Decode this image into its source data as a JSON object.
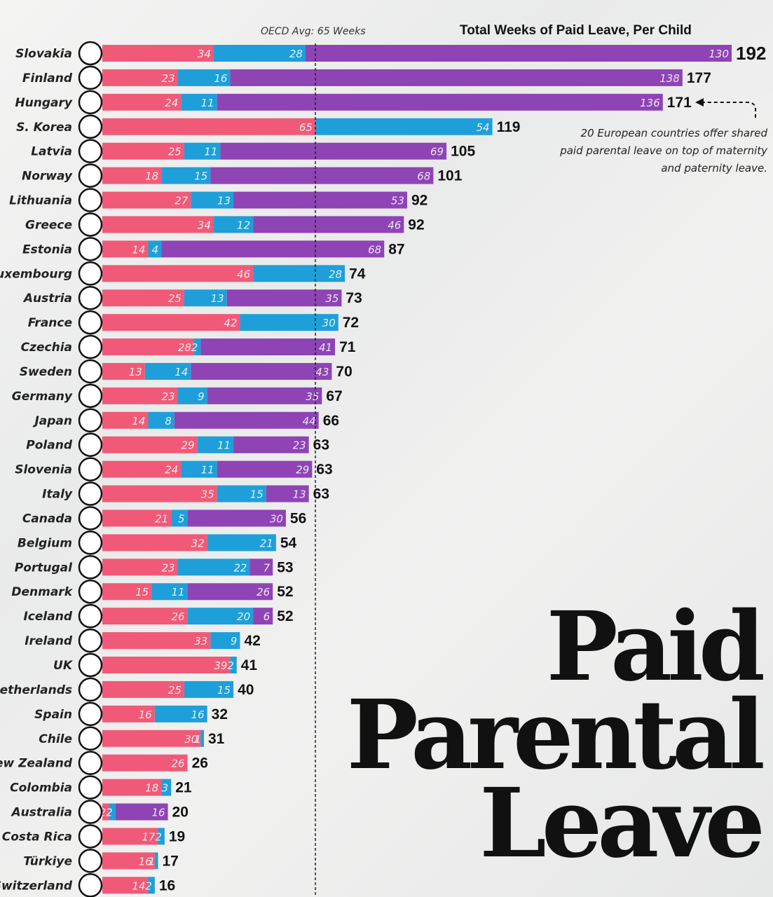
{
  "chart_data": {
    "type": "bar",
    "orientation": "horizontal",
    "stacked": true,
    "title": "Total Weeks of Paid Leave, Per Child",
    "reference_line": {
      "label": "OECD Avg: 65 Weeks",
      "value": 65
    },
    "colors": {
      "maternity": "#f05a78",
      "paternity": "#1e9fd9",
      "shared": "#8e44b5"
    },
    "categories": [
      "Slovakia",
      "Finland",
      "Hungary",
      "S. Korea",
      "Latvia",
      "Norway",
      "Lithuania",
      "Greece",
      "Estonia",
      "Luxembourg",
      "Austria",
      "France",
      "Czechia",
      "Sweden",
      "Germany",
      "Japan",
      "Poland",
      "Slovenia",
      "Italy",
      "Canada",
      "Belgium",
      "Portugal",
      "Denmark",
      "Iceland",
      "Ireland",
      "UK",
      "Netherlands",
      "Spain",
      "Chile",
      "New Zealand",
      "Colombia",
      "Australia",
      "Costa Rica",
      "Türkiye",
      "Switzerland"
    ],
    "series": [
      {
        "values": [
          34,
          23,
          24,
          65,
          25,
          18,
          27,
          34,
          14,
          46,
          25,
          42,
          28,
          13,
          23,
          14,
          29,
          24,
          35,
          21,
          32,
          23,
          15,
          26,
          33,
          39,
          25,
          16,
          30,
          26,
          18,
          2,
          17,
          16,
          14
        ]
      },
      {
        "values": [
          28,
          16,
          11,
          54,
          11,
          15,
          13,
          12,
          4,
          28,
          13,
          30,
          2,
          14,
          9,
          8,
          11,
          11,
          15,
          5,
          21,
          22,
          11,
          20,
          9,
          2,
          15,
          16,
          1,
          0,
          3,
          2,
          2,
          1,
          2
        ]
      },
      {
        "values": [
          130,
          138,
          136,
          0,
          69,
          68,
          53,
          46,
          68,
          0,
          35,
          0,
          41,
          43,
          35,
          44,
          23,
          29,
          13,
          30,
          0,
          7,
          26,
          6,
          0,
          0,
          0,
          0,
          0,
          0,
          0,
          16,
          0,
          0,
          0
        ]
      }
    ],
    "totals": [
      192,
      177,
      171,
      119,
      105,
      101,
      92,
      92,
      87,
      74,
      73,
      72,
      71,
      70,
      67,
      66,
      63,
      63,
      63,
      56,
      54,
      53,
      52,
      52,
      42,
      41,
      40,
      32,
      31,
      26,
      21,
      20,
      19,
      17,
      16
    ],
    "xlim": [
      0,
      192
    ]
  },
  "annotation": "20 European countries offer shared paid parental leave on top of maternity and paternity leave.",
  "headline": [
    "Paid",
    "Parental",
    "Leave"
  ]
}
